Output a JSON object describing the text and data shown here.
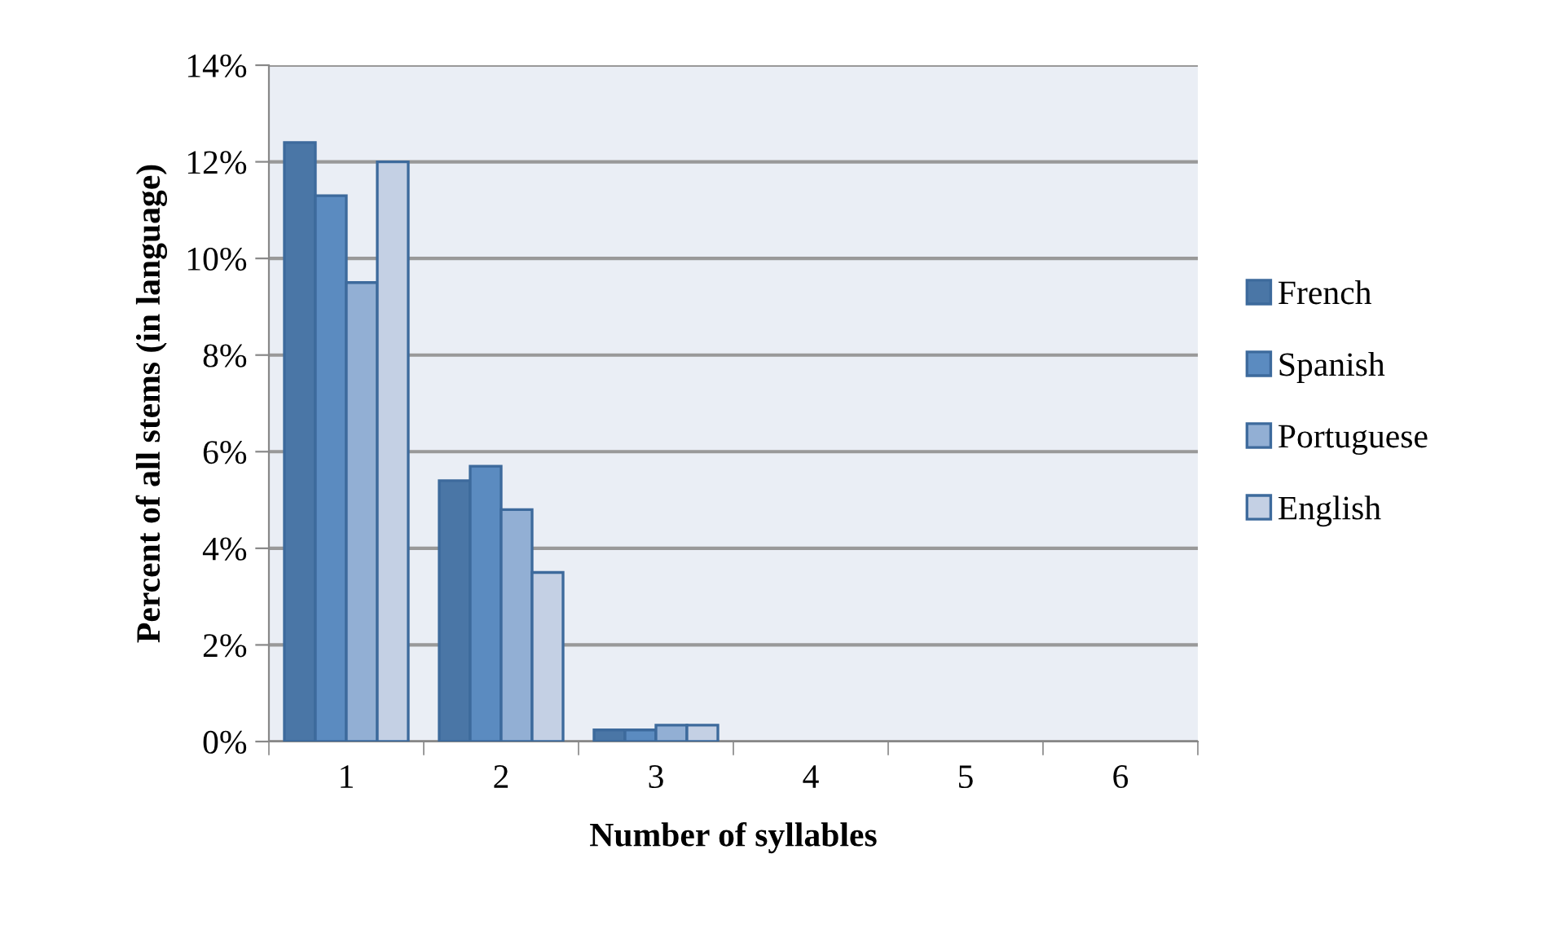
{
  "chart_data": {
    "type": "bar",
    "xlabel": "Number of syllables",
    "ylabel": "Percent of all stems (in language)",
    "categories": [
      "1",
      "2",
      "3",
      "4",
      "5",
      "6"
    ],
    "series": [
      {
        "name": "French",
        "color": "#4a76a6",
        "values": [
          12.4,
          5.4,
          0.24,
          0,
          0,
          0
        ]
      },
      {
        "name": "Spanish",
        "color": "#5b8bc0",
        "values": [
          11.3,
          5.7,
          0.24,
          0,
          0,
          0
        ]
      },
      {
        "name": "Portuguese",
        "color": "#92afd4",
        "values": [
          9.5,
          4.8,
          0.34,
          0,
          0,
          0
        ]
      },
      {
        "name": "English",
        "color": "#c4d0e4",
        "values": [
          12.0,
          3.5,
          0.34,
          0,
          0,
          0
        ]
      }
    ],
    "ylim": [
      0,
      14
    ],
    "yticks": [
      {
        "value": 0,
        "label": "0%"
      },
      {
        "value": 2,
        "label": "2%"
      },
      {
        "value": 4,
        "label": "4%"
      },
      {
        "value": 6,
        "label": "6%"
      },
      {
        "value": 8,
        "label": "8%"
      },
      {
        "value": 10,
        "label": "10%"
      },
      {
        "value": 12,
        "label": "12%"
      },
      {
        "value": 14,
        "label": "14%"
      }
    ],
    "grid": "y",
    "legend": "right"
  }
}
